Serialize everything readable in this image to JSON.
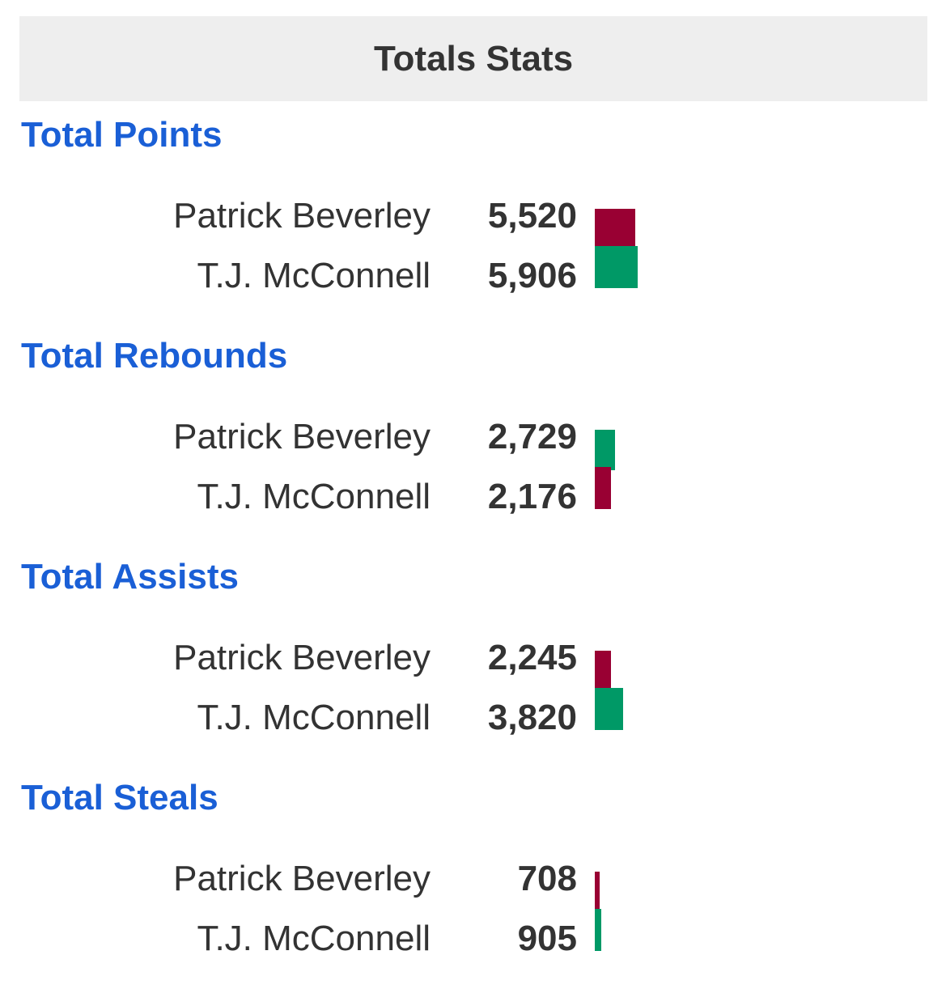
{
  "header": {
    "title": "Totals Stats"
  },
  "colors": {
    "winner": "#009966",
    "loser": "#990033",
    "section_title": "#1a5fd6"
  },
  "chart_data": {
    "type": "bar",
    "title": "Totals Stats",
    "players": [
      "Patrick Beverley",
      "T.J. McConnell"
    ],
    "sections": [
      {
        "title": "Total Points",
        "rows": [
          {
            "player": "Patrick Beverley",
            "value": 5520,
            "label": "5,520",
            "color": "#990033"
          },
          {
            "player": "T.J. McConnell",
            "value": 5906,
            "label": "5,906",
            "color": "#009966"
          }
        ]
      },
      {
        "title": "Total Rebounds",
        "rows": [
          {
            "player": "Patrick Beverley",
            "value": 2729,
            "label": "2,729",
            "color": "#009966"
          },
          {
            "player": "T.J. McConnell",
            "value": 2176,
            "label": "2,176",
            "color": "#990033"
          }
        ]
      },
      {
        "title": "Total Assists",
        "rows": [
          {
            "player": "Patrick Beverley",
            "value": 2245,
            "label": "2,245",
            "color": "#990033"
          },
          {
            "player": "T.J. McConnell",
            "value": 3820,
            "label": "3,820",
            "color": "#009966"
          }
        ]
      },
      {
        "title": "Total Steals",
        "rows": [
          {
            "player": "Patrick Beverley",
            "value": 708,
            "label": "708",
            "color": "#990033"
          },
          {
            "player": "T.J. McConnell",
            "value": 905,
            "label": "905",
            "color": "#009966"
          }
        ]
      }
    ]
  }
}
